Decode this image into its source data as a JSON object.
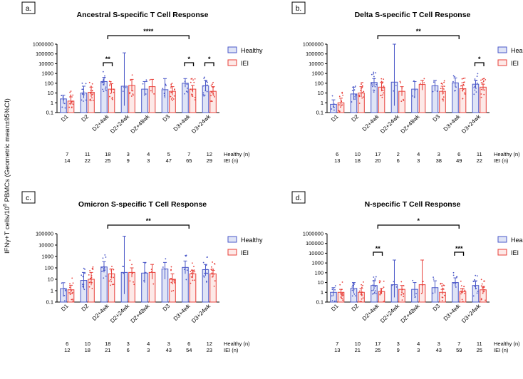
{
  "figure": {
    "ylabel_prefix": "IFNγ+T cells/10",
    "ylabel_sup": "6",
    "ylabel_suffix": " PBMCs (Geometric mean±95%CI)",
    "colors": {
      "healthy": "#4a57c8",
      "iei": "#e8403a",
      "healthy_fill": "#dfe4f6",
      "iei_fill": "#fde9e7"
    }
  },
  "chart_data": [
    {
      "type": "bar",
      "panel_label": "a.",
      "title": "Ancestral S-specific T Cell Response",
      "ylabel": "IFNγ+T cells/10^6 PBMCs (Geometric mean±95%CI)",
      "yscale": "log",
      "ylim": [
        0.1,
        1000000
      ],
      "yticks": [
        "0.1",
        "1",
        "10",
        "100",
        "1000",
        "10000",
        "100000",
        "1000000"
      ],
      "categories": [
        "D1",
        "D2",
        "D2+4wk",
        "D2+24wk",
        "D2+48wk",
        "D3",
        "D3+4wk",
        "D3+24wk"
      ],
      "legend": [
        "Healthy",
        "IEI"
      ],
      "series": [
        {
          "name": "Healthy",
          "values": [
            2.5,
            10,
            150,
            50,
            25,
            22,
            100,
            55
          ],
          "ci_low": [
            0.8,
            3,
            60,
            0.5,
            5,
            3,
            40,
            15
          ],
          "ci_high": [
            6,
            50,
            400,
            130000,
            150,
            300,
            300,
            200
          ],
          "n": [
            "7",
            "11",
            "18",
            "3",
            "4",
            "5",
            "7",
            "12"
          ]
        },
        {
          "name": "IEI",
          "values": [
            1.5,
            12,
            25,
            60,
            45,
            15,
            25,
            15
          ],
          "ci_low": [
            0.6,
            4,
            10,
            20,
            10,
            6,
            12,
            6
          ],
          "ci_high": [
            4,
            40,
            90,
            250,
            250,
            45,
            60,
            45
          ],
          "n": [
            "14",
            "22",
            "25",
            "9",
            "3",
            "47",
            "65",
            "29"
          ]
        }
      ],
      "n_labels": [
        "Healthy (n)",
        "IEI (n)"
      ],
      "significance": [
        {
          "label": "****",
          "from": "D2+4wk",
          "to": "D3+4wk",
          "type": "overall"
        },
        {
          "label": "**",
          "at": "D2+4wk",
          "type": "pair"
        },
        {
          "label": "*",
          "at": "D3+4wk",
          "type": "pair"
        },
        {
          "label": "*",
          "at": "D3+24wk",
          "type": "pair"
        }
      ]
    },
    {
      "type": "bar",
      "panel_label": "b.",
      "title": "Delta S-specific T Cell Response",
      "ylabel": "IFNγ+T cells/10^6 PBMCs (Geometric mean±95%CI)",
      "yscale": "log",
      "ylim": [
        0.1,
        1000000
      ],
      "yticks": [
        "0.1",
        "1",
        "10",
        "100",
        "1000",
        "10000",
        "100000",
        "1000000"
      ],
      "categories": [
        "D1",
        "D2",
        "D2+4wk",
        "D2+24wk",
        "D2+48wk",
        "D3",
        "D3+4wk",
        "D3+24wk"
      ],
      "legend": [
        "Healthy",
        "IEI"
      ],
      "series": [
        {
          "name": "Healthy",
          "values": [
            0.7,
            8,
            120,
            130,
            25,
            55,
            110,
            80
          ],
          "ci_low": [
            0.3,
            2,
            50,
            0.5,
            3,
            15,
            40,
            30
          ],
          "ci_high": [
            2,
            40,
            300,
            1000000,
            150,
            200,
            350,
            200
          ],
          "n": [
            "6",
            "10",
            "17",
            "2",
            "4",
            "3",
            "6",
            "11"
          ]
        },
        {
          "name": "IEI",
          "values": [
            1,
            10,
            40,
            15,
            75,
            15,
            28,
            40
          ],
          "ci_low": [
            0.5,
            4,
            15,
            5,
            20,
            7,
            14,
            18
          ],
          "ci_high": [
            3,
            45,
            120,
            45,
            200,
            50,
            60,
            80
          ],
          "n": [
            "13",
            "18",
            "20",
            "6",
            "3",
            "38",
            "49",
            "22"
          ]
        }
      ],
      "n_labels": [
        "Healthy (n)",
        "IEI (n)"
      ],
      "significance": [
        {
          "label": "**",
          "from": "D2+4wk",
          "to": "D3+4wk",
          "type": "overall"
        },
        {
          "label": "*",
          "at": "D3+24wk",
          "type": "pair"
        }
      ]
    },
    {
      "type": "bar",
      "panel_label": "c.",
      "title": "Omicron S-specific T Cell Response",
      "ylabel": "IFNγ+T cells/10^6 PBMCs (Geometric mean±95%CI)",
      "yscale": "log",
      "ylim": [
        0.1,
        100000
      ],
      "yticks": [
        "0.1",
        "1",
        "10",
        "100",
        "1000",
        "10000",
        "100000"
      ],
      "categories": [
        "D1",
        "D2",
        "D2+4wk",
        "D2+24wk",
        "D2+48wk",
        "D3",
        "D3+4wk",
        "D3+24wk"
      ],
      "legend": [
        "Healthy",
        "IEI"
      ],
      "series": [
        {
          "name": "Healthy",
          "values": [
            1.5,
            8,
            120,
            40,
            35,
            80,
            110,
            70
          ],
          "ci_low": [
            0.3,
            1.5,
            40,
            0.5,
            5,
            10,
            30,
            20
          ],
          "ci_high": [
            5,
            40,
            350,
            60000,
            300,
            300,
            400,
            200
          ],
          "n": [
            "6",
            "10",
            "18",
            "3",
            "4",
            "3",
            "6",
            "12"
          ]
        },
        {
          "name": "IEI",
          "values": [
            1.2,
            10,
            30,
            40,
            40,
            10,
            30,
            30
          ],
          "ci_low": [
            0.5,
            3,
            12,
            15,
            10,
            5,
            15,
            15
          ],
          "ci_high": [
            3,
            40,
            80,
            100,
            200,
            30,
            60,
            60
          ],
          "n": [
            "12",
            "18",
            "21",
            "6",
            "3",
            "43",
            "54",
            "23"
          ]
        }
      ],
      "n_labels": [
        "Healthy (n)",
        "IEI (n)"
      ],
      "significance": [
        {
          "label": "**",
          "from": "D2+4wk",
          "to": "D3+4wk",
          "type": "overall"
        }
      ]
    },
    {
      "type": "bar",
      "panel_label": "d.",
      "title": "N-specific T Cell Response",
      "ylabel": "IFNγ+T cells/10^6 PBMCs (Geometric mean±95%CI)",
      "yscale": "log",
      "ylim": [
        0.1,
        1000000
      ],
      "yticks": [
        "0.1",
        "1",
        "10",
        "100",
        "1000",
        "10000",
        "100000",
        "1000000"
      ],
      "categories": [
        "D1",
        "D2",
        "D2+4wk",
        "D2+24wk",
        "D2+48wk",
        "D3",
        "D3+4wk",
        "D3+24wk"
      ],
      "legend": [
        "Healthy",
        "IEI"
      ],
      "series": [
        {
          "name": "Healthy",
          "values": [
            1,
            2.5,
            5,
            6,
            2,
            3,
            10,
            5
          ],
          "ci_low": [
            0.4,
            0.8,
            2,
            0.3,
            0.4,
            0.8,
            4,
            2
          ],
          "ci_high": [
            3,
            10,
            15,
            2000,
            10,
            15,
            30,
            15
          ],
          "n": [
            "7",
            "10",
            "17",
            "3",
            "4",
            "3",
            "7",
            "11"
          ]
        },
        {
          "name": "IEI",
          "values": [
            1,
            1,
            1.2,
            2,
            6,
            1,
            1.2,
            1.8
          ],
          "ci_low": [
            0.5,
            0.5,
            0.7,
            0.8,
            0.8,
            0.6,
            0.8,
            0.9
          ],
          "ci_high": [
            2,
            2.5,
            2.5,
            5,
            2000,
            2,
            2.2,
            4
          ],
          "n": [
            "13",
            "21",
            "25",
            "9",
            "3",
            "43",
            "59",
            "25"
          ]
        }
      ],
      "n_labels": [
        "Healthy (n)",
        "IEI (n)"
      ],
      "significance": [
        {
          "label": "*",
          "from": "D2+4wk",
          "to": "D3+4wk",
          "type": "overall"
        },
        {
          "label": "**",
          "at": "D2+4wk",
          "type": "pair"
        },
        {
          "label": "***",
          "at": "D3+4wk",
          "type": "pair"
        }
      ]
    }
  ]
}
